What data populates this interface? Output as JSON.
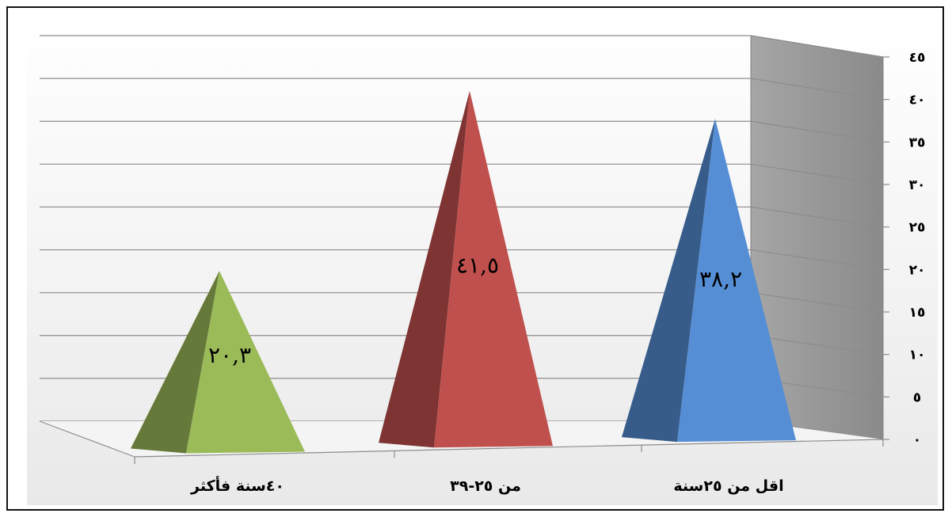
{
  "chart_data": {
    "type": "bar",
    "style": "3d-pyramid",
    "categories": [
      "اقل من ٢٥سنة",
      "من ٢٥-٣٩",
      "٤٠سنة فأكثر"
    ],
    "values": [
      38.2,
      41.5,
      20.3
    ],
    "data_labels": [
      "٣٨,٢",
      "٤١,٥",
      "٢٠,٣"
    ],
    "colors": [
      "#558ED5",
      "#C0504D",
      "#9BBB59"
    ],
    "ylim": [
      0,
      45
    ],
    "y_ticks": [
      0,
      5,
      10,
      15,
      20,
      25,
      30,
      35,
      40,
      45
    ],
    "y_tick_labels": [
      "٠",
      "٥",
      "١٠",
      "١٥",
      "٢٠",
      "٢٥",
      "٣٠",
      "٣٥",
      "٤٠",
      "٤٥"
    ],
    "y_axis_side": "right",
    "category_order": "right-to-left",
    "grid": true,
    "title": "",
    "xlabel": "",
    "ylabel": ""
  }
}
